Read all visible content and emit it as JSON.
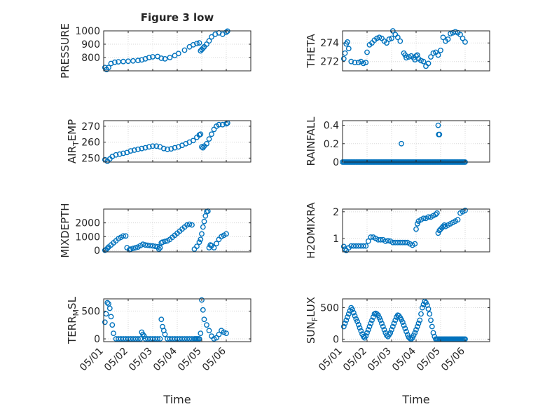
{
  "figure": {
    "title": "Figure 3 low",
    "xlabel": "Time",
    "x_tick_labels": [
      "05/01",
      "05/02",
      "05/03",
      "05/04",
      "05/05",
      "05/06"
    ],
    "marker_color": "#0072BD",
    "grid_color": "#d9d9d9",
    "axis_color": "#262626"
  },
  "chart_data": [
    {
      "type": "scatter",
      "ylabel_main": "PRESSURE",
      "xlim": [
        0,
        6
      ],
      "ylim": [
        700,
        1000
      ],
      "yticks": [
        800,
        900,
        1000
      ],
      "ytick_labels": [
        "800",
        "900",
        "1000"
      ],
      "grid": true,
      "marker": "open-circle",
      "x": [
        0.05,
        0.12,
        0.2,
        0.3,
        0.45,
        0.6,
        0.8,
        1.0,
        1.2,
        1.4,
        1.55,
        1.7,
        1.85,
        2.0,
        2.2,
        2.35,
        2.5,
        2.7,
        2.9,
        3.05,
        3.3,
        3.5,
        3.65,
        3.8,
        3.9,
        3.95,
        4.0,
        4.05,
        4.1,
        4.2,
        4.3,
        4.4,
        4.55,
        4.7,
        4.85,
        5.0,
        5.05
      ],
      "y": [
        725,
        710,
        725,
        755,
        765,
        768,
        770,
        772,
        775,
        778,
        782,
        790,
        800,
        805,
        808,
        795,
        790,
        800,
        815,
        830,
        855,
        880,
        895,
        905,
        910,
        850,
        860,
        870,
        880,
        900,
        925,
        955,
        975,
        985,
        975,
        990,
        998
      ]
    },
    {
      "type": "scatter",
      "ylabel_main": "THETA",
      "xlim": [
        0,
        6
      ],
      "ylim": [
        271,
        275.3
      ],
      "yticks": [
        272,
        274
      ],
      "ytick_labels": [
        "272",
        "274"
      ],
      "grid": true,
      "marker": "open-circle",
      "x": [
        0.05,
        0.1,
        0.15,
        0.2,
        0.25,
        0.35,
        0.5,
        0.65,
        0.75,
        0.85,
        0.95,
        1.0,
        1.1,
        1.2,
        1.3,
        1.4,
        1.5,
        1.6,
        1.7,
        1.8,
        1.9,
        2.0,
        2.05,
        2.15,
        2.25,
        2.35,
        2.5,
        2.55,
        2.6,
        2.7,
        2.8,
        2.9,
        2.95,
        3.0,
        3.05,
        3.1,
        3.2,
        3.3,
        3.4,
        3.5,
        3.6,
        3.7,
        3.8,
        3.9,
        4.0,
        4.1,
        4.2,
        4.3,
        4.4,
        4.5,
        4.6,
        4.7,
        4.8,
        4.9,
        5.0
      ],
      "y": [
        272.3,
        272.9,
        273.9,
        274.1,
        273.4,
        272.0,
        271.9,
        271.9,
        272.0,
        271.8,
        271.9,
        273.0,
        273.8,
        274.0,
        274.3,
        274.5,
        274.6,
        274.5,
        274.2,
        274.0,
        274.4,
        274.5,
        275.3,
        274.9,
        274.6,
        274.2,
        272.9,
        272.7,
        272.4,
        272.5,
        272.6,
        272.4,
        272.2,
        272.6,
        272.7,
        272.3,
        272.1,
        272.0,
        271.5,
        271.8,
        272.5,
        272.9,
        273.0,
        272.7,
        273.2,
        274.6,
        274.2,
        274.4,
        275.0,
        275.1,
        275.2,
        275.1,
        274.9,
        274.5,
        274.1
      ]
    },
    {
      "type": "scatter",
      "ylabel_main": "AIR",
      "ylabel_sub": "T",
      "ylabel_rest": "EMP",
      "xlim": [
        0,
        6
      ],
      "ylim": [
        247.5,
        273.5
      ],
      "yticks": [
        250,
        260,
        270
      ],
      "ytick_labels": [
        "250",
        "260",
        "270"
      ],
      "grid": true,
      "marker": "open-circle",
      "x": [
        0.05,
        0.15,
        0.25,
        0.35,
        0.5,
        0.65,
        0.8,
        0.95,
        1.1,
        1.25,
        1.4,
        1.55,
        1.7,
        1.85,
        2.0,
        2.15,
        2.3,
        2.45,
        2.6,
        2.75,
        2.9,
        3.05,
        3.2,
        3.35,
        3.5,
        3.65,
        3.8,
        3.9,
        3.95,
        4.0,
        4.05,
        4.1,
        4.2,
        4.3,
        4.4,
        4.5,
        4.6,
        4.7,
        4.85,
        5.0,
        5.05
      ],
      "y": [
        249,
        248,
        249.5,
        251,
        252,
        252.5,
        253,
        253.5,
        254.5,
        255,
        255.5,
        256,
        256.5,
        257,
        257.5,
        257.5,
        257,
        256,
        255.5,
        255.8,
        256.5,
        257,
        258,
        259,
        260,
        261,
        263,
        264.5,
        265,
        257,
        256.5,
        257.5,
        259,
        262,
        265,
        268,
        270,
        271,
        271,
        271.5,
        272
      ]
    },
    {
      "type": "scatter",
      "ylabel_main": "RAINFALL",
      "xlim": [
        0,
        6
      ],
      "ylim": [
        0,
        0.45
      ],
      "yticks": [
        0,
        0.2,
        0.4
      ],
      "ytick_labels": [
        "0",
        "0.2",
        "0.4"
      ],
      "grid": true,
      "marker": "open-circle",
      "x": [
        0.0,
        0.05,
        0.1,
        0.15,
        0.2,
        0.25,
        0.3,
        0.35,
        0.4,
        0.45,
        0.5,
        0.55,
        0.6,
        0.65,
        0.7,
        0.75,
        0.8,
        0.85,
        0.9,
        0.95,
        1.0,
        1.05,
        1.1,
        1.15,
        1.2,
        1.25,
        1.3,
        1.35,
        1.4,
        1.45,
        1.5,
        1.55,
        1.6,
        1.65,
        1.7,
        1.75,
        1.8,
        1.85,
        1.9,
        1.95,
        2.0,
        2.05,
        2.1,
        2.15,
        2.2,
        2.25,
        2.3,
        2.35,
        2.4,
        2.45,
        2.5,
        2.55,
        2.6,
        2.65,
        2.7,
        2.75,
        2.8,
        2.85,
        2.9,
        2.95,
        3.0,
        3.05,
        3.1,
        3.15,
        3.2,
        3.25,
        3.3,
        3.35,
        3.4,
        3.45,
        3.5,
        3.55,
        3.6,
        3.65,
        3.7,
        3.75,
        3.8,
        3.85,
        3.9,
        3.95,
        4.0,
        4.05,
        4.1,
        4.15,
        4.2,
        4.25,
        4.3,
        4.35,
        4.4,
        4.45,
        4.5,
        4.55,
        4.6,
        4.65,
        4.7,
        4.75,
        4.8,
        4.85,
        4.9,
        4.95,
        5.0,
        2.4,
        3.9,
        3.92,
        3.95
      ],
      "y": [
        0,
        0,
        0,
        0,
        0,
        0,
        0,
        0,
        0,
        0,
        0,
        0,
        0,
        0,
        0,
        0,
        0,
        0,
        0,
        0,
        0,
        0,
        0,
        0,
        0,
        0,
        0,
        0,
        0,
        0,
        0,
        0,
        0,
        0,
        0,
        0,
        0,
        0,
        0,
        0,
        0,
        0,
        0,
        0,
        0,
        0,
        0,
        0,
        0,
        0,
        0,
        0,
        0,
        0,
        0,
        0,
        0,
        0,
        0,
        0,
        0,
        0,
        0,
        0,
        0,
        0,
        0,
        0,
        0,
        0,
        0,
        0,
        0,
        0,
        0,
        0,
        0,
        0,
        0,
        0,
        0,
        0,
        0,
        0,
        0,
        0,
        0,
        0,
        0,
        0,
        0,
        0,
        0,
        0,
        0,
        0,
        0,
        0,
        0,
        0,
        0,
        0.2,
        0.4,
        0.3,
        0.3
      ]
    },
    {
      "type": "scatter",
      "ylabel_main": "MIXDEPTH",
      "xlim": [
        0,
        6
      ],
      "ylim": [
        -100,
        3000
      ],
      "yticks": [
        0,
        1000,
        2000
      ],
      "ytick_labels": [
        "0",
        "1000",
        "2000"
      ],
      "grid": true,
      "marker": "open-circle",
      "x": [
        0.05,
        0.1,
        0.15,
        0.2,
        0.3,
        0.4,
        0.5,
        0.6,
        0.7,
        0.8,
        0.9,
        0.95,
        1.05,
        1.1,
        1.2,
        1.3,
        1.4,
        1.5,
        1.6,
        1.7,
        1.8,
        1.9,
        2.0,
        2.1,
        2.2,
        2.25,
        2.3,
        2.35,
        2.4,
        2.5,
        2.6,
        2.7,
        2.8,
        2.9,
        3.0,
        3.1,
        3.2,
        3.3,
        3.4,
        3.5,
        3.6,
        3.7,
        3.8,
        3.9,
        3.95,
        4.0,
        4.05,
        4.1,
        4.15,
        4.2,
        4.25,
        4.3,
        4.35,
        4.4,
        4.5,
        4.6,
        4.7,
        4.8,
        4.9,
        5.0
      ],
      "y": [
        10,
        60,
        150,
        250,
        400,
        550,
        700,
        850,
        950,
        1050,
        1050,
        200,
        50,
        100,
        150,
        200,
        250,
        350,
        450,
        400,
        380,
        350,
        330,
        300,
        270,
        100,
        200,
        550,
        600,
        650,
        700,
        800,
        950,
        1100,
        1250,
        1400,
        1550,
        1700,
        1850,
        1900,
        1850,
        100,
        300,
        600,
        800,
        1200,
        1700,
        2100,
        2500,
        2800,
        2850,
        200,
        400,
        350,
        200,
        500,
        800,
        1000,
        1100,
        1200
      ]
    },
    {
      "type": "scatter",
      "ylabel_main": "H2OMIXRA",
      "xlim": [
        0,
        6
      ],
      "ylim": [
        0.5,
        2.1
      ],
      "yticks": [
        1,
        2
      ],
      "ytick_labels": [
        "1",
        "2"
      ],
      "grid": true,
      "marker": "open-circle",
      "x": [
        0.05,
        0.1,
        0.15,
        0.25,
        0.35,
        0.45,
        0.55,
        0.65,
        0.75,
        0.85,
        0.95,
        1.05,
        1.15,
        1.25,
        1.35,
        1.45,
        1.55,
        1.65,
        1.75,
        1.85,
        1.95,
        2.05,
        2.15,
        2.25,
        2.35,
        2.45,
        2.55,
        2.65,
        2.75,
        2.85,
        2.95,
        3.0,
        3.05,
        3.1,
        3.2,
        3.3,
        3.4,
        3.5,
        3.6,
        3.7,
        3.8,
        3.85,
        3.9,
        3.95,
        4.0,
        4.05,
        4.1,
        4.15,
        4.2,
        4.3,
        4.4,
        4.5,
        4.6,
        4.7,
        4.8,
        4.9,
        5.0
      ],
      "y": [
        0.7,
        0.6,
        0.55,
        0.65,
        0.72,
        0.72,
        0.72,
        0.72,
        0.72,
        0.72,
        0.72,
        0.9,
        1.05,
        1.05,
        1.0,
        0.95,
        0.95,
        0.95,
        0.9,
        0.92,
        0.9,
        0.85,
        0.85,
        0.85,
        0.85,
        0.85,
        0.85,
        0.85,
        0.8,
        0.75,
        0.8,
        1.35,
        1.55,
        1.65,
        1.7,
        1.75,
        1.75,
        1.8,
        1.8,
        1.85,
        1.9,
        1.95,
        1.2,
        1.3,
        1.35,
        1.4,
        1.45,
        1.5,
        1.45,
        1.5,
        1.55,
        1.6,
        1.65,
        1.7,
        1.95,
        2.0,
        2.05
      ]
    },
    {
      "type": "scatter",
      "ylabel_main": "TERR",
      "ylabel_sub": "M",
      "ylabel_rest": "SL",
      "xlim": [
        0,
        6
      ],
      "ylim": [
        -50,
        720
      ],
      "yticks": [
        0,
        500
      ],
      "ytick_labels": [
        "0",
        "500"
      ],
      "grid": true,
      "marker": "open-circle",
      "x": [
        0.05,
        0.1,
        0.15,
        0.2,
        0.25,
        0.3,
        0.35,
        0.4,
        0.5,
        0.6,
        0.7,
        0.8,
        0.9,
        1.0,
        1.1,
        1.2,
        1.3,
        1.4,
        1.5,
        1.55,
        1.6,
        1.65,
        1.7,
        1.8,
        1.9,
        2.0,
        2.1,
        2.2,
        2.3,
        2.35,
        2.4,
        2.45,
        2.5,
        2.6,
        2.7,
        2.8,
        2.9,
        3.0,
        3.1,
        3.2,
        3.3,
        3.4,
        3.5,
        3.6,
        3.7,
        3.75,
        3.8,
        3.85,
        3.9,
        3.95,
        4.0,
        4.05,
        4.1,
        4.2,
        4.3,
        4.4,
        4.5,
        4.6,
        4.7,
        4.8,
        4.9,
        5.0
      ],
      "y": [
        300,
        450,
        650,
        630,
        550,
        400,
        250,
        100,
        0,
        0,
        0,
        0,
        0,
        0,
        0,
        0,
        0,
        0,
        0,
        120,
        80,
        50,
        0,
        0,
        0,
        0,
        0,
        0,
        0,
        350,
        220,
        150,
        80,
        0,
        0,
        0,
        0,
        0,
        0,
        0,
        0,
        0,
        0,
        0,
        0,
        0,
        0,
        0,
        0,
        100,
        700,
        520,
        350,
        250,
        150,
        50,
        0,
        20,
        80,
        150,
        120,
        100
      ]
    },
    {
      "type": "scatter",
      "ylabel_main": "SUN",
      "ylabel_sub": "F",
      "ylabel_rest": "LUX",
      "xlim": [
        0,
        6
      ],
      "ylim": [
        -40,
        640
      ],
      "yticks": [
        0,
        500
      ],
      "ytick_labels": [
        "0",
        "500"
      ],
      "grid": true,
      "marker": "open-circle",
      "x": [
        0.05,
        0.1,
        0.15,
        0.2,
        0.25,
        0.3,
        0.35,
        0.4,
        0.45,
        0.5,
        0.55,
        0.6,
        0.65,
        0.7,
        0.75,
        0.8,
        0.85,
        0.9,
        0.95,
        1.0,
        1.05,
        1.1,
        1.15,
        1.2,
        1.25,
        1.3,
        1.35,
        1.4,
        1.45,
        1.5,
        1.55,
        1.6,
        1.65,
        1.7,
        1.75,
        1.8,
        1.85,
        1.9,
        1.95,
        2.0,
        2.05,
        2.1,
        2.15,
        2.2,
        2.25,
        2.3,
        2.35,
        2.4,
        2.45,
        2.5,
        2.55,
        2.6,
        2.65,
        2.7,
        2.75,
        2.8,
        2.85,
        2.9,
        2.95,
        3.0,
        3.05,
        3.1,
        3.15,
        3.2,
        3.25,
        3.3,
        3.35,
        3.4,
        3.45,
        3.5,
        3.55,
        3.6,
        3.65,
        3.7,
        3.75,
        3.8,
        3.85,
        3.9,
        3.95,
        4.0,
        4.05,
        4.1,
        4.15,
        4.2,
        4.25,
        4.3,
        4.35,
        4.4,
        4.45,
        4.5,
        4.55,
        4.6,
        4.65,
        4.7,
        4.75,
        4.8,
        4.85,
        4.9,
        4.95,
        5.0
      ],
      "y": [
        200,
        250,
        300,
        350,
        400,
        450,
        500,
        470,
        420,
        370,
        320,
        280,
        230,
        180,
        130,
        80,
        40,
        20,
        50,
        100,
        150,
        200,
        250,
        300,
        350,
        400,
        410,
        400,
        380,
        340,
        300,
        250,
        200,
        150,
        100,
        60,
        40,
        70,
        100,
        150,
        200,
        250,
        300,
        350,
        380,
        370,
        340,
        310,
        270,
        220,
        170,
        120,
        70,
        30,
        10,
        0,
        20,
        60,
        100,
        150,
        200,
        250,
        300,
        400,
        500,
        550,
        600,
        580,
        540,
        480,
        400,
        300,
        200,
        100,
        40,
        0,
        0,
        0,
        0,
        0,
        0,
        0,
        0,
        0,
        0,
        0,
        0,
        0,
        0,
        0,
        0,
        0,
        0,
        0,
        0,
        0,
        0,
        0,
        0,
        0
      ]
    }
  ]
}
